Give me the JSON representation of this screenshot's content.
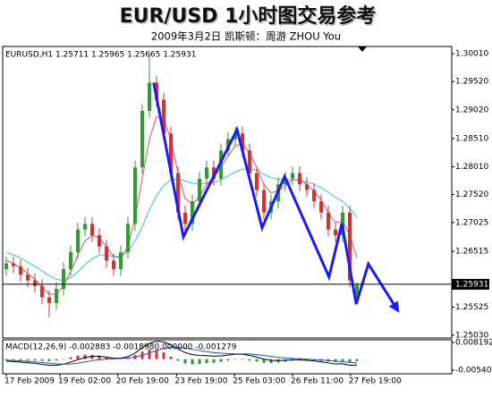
{
  "chart_data": [
    {
      "type": "candlestick",
      "title": "EUR/USD 1小时图交易参考",
      "subtitle": "2009年3月2日   凯斯顿：周游 ZHOU You",
      "info": "EURUSD,H1  1.25711 1.25965 1.25665 1.25931",
      "x": [
        0,
        1,
        2,
        3,
        4,
        5,
        6,
        7,
        8,
        9,
        10,
        11,
        12,
        13,
        14,
        15,
        16,
        17,
        18,
        19,
        20,
        21,
        22,
        23,
        24,
        25,
        26,
        27,
        28,
        29,
        30,
        31,
        32,
        33,
        34,
        35,
        36,
        37,
        38,
        39,
        40,
        41,
        42,
        43,
        44,
        45,
        46,
        47,
        48,
        49
      ],
      "open": [
        1.262,
        1.263,
        1.2625,
        1.261,
        1.26,
        1.259,
        1.257,
        1.256,
        1.2585,
        1.262,
        1.265,
        1.269,
        1.27,
        1.268,
        1.266,
        1.2635,
        1.262,
        1.265,
        1.27,
        1.28,
        1.29,
        1.295,
        1.292,
        1.286,
        1.279,
        1.272,
        1.27,
        1.274,
        1.278,
        1.28,
        1.278,
        1.283,
        1.285,
        1.286,
        1.283,
        1.279,
        1.276,
        1.272,
        1.274,
        1.277,
        1.278,
        1.279,
        1.277,
        1.276,
        1.274,
        1.272,
        1.269,
        1.268,
        1.272,
        1.25711
      ],
      "high": [
        1.2642,
        1.2642,
        1.2637,
        1.2622,
        1.2612,
        1.2602,
        1.2582,
        1.2597,
        1.2632,
        1.2662,
        1.2702,
        1.2712,
        1.2712,
        1.2692,
        1.2672,
        1.2647,
        1.2662,
        1.2712,
        1.2812,
        1.2912,
        1.3001,
        1.2962,
        1.2932,
        1.2872,
        1.2802,
        1.2732,
        1.2752,
        1.2792,
        1.2812,
        1.2812,
        1.2842,
        1.2862,
        1.2872,
        1.2872,
        1.2842,
        1.2802,
        1.2772,
        1.2752,
        1.2782,
        1.2792,
        1.2802,
        1.2802,
        1.2782,
        1.2772,
        1.2752,
        1.2732,
        1.2702,
        1.2732,
        1.2732,
        1.25965
      ],
      "low": [
        1.2608,
        1.2613,
        1.2598,
        1.2588,
        1.2578,
        1.2558,
        1.2535,
        1.2548,
        1.2573,
        1.2608,
        1.2638,
        1.2678,
        1.2668,
        1.2648,
        1.2623,
        1.2608,
        1.2608,
        1.2638,
        1.2688,
        1.2788,
        1.2888,
        1.2908,
        1.2848,
        1.2778,
        1.2708,
        1.2688,
        1.2688,
        1.2728,
        1.2768,
        1.2768,
        1.2768,
        1.2818,
        1.2838,
        1.2818,
        1.2778,
        1.2748,
        1.2708,
        1.2708,
        1.2728,
        1.2758,
        1.2768,
        1.2758,
        1.2748,
        1.2728,
        1.2708,
        1.2678,
        1.2668,
        1.2668,
        1.2588,
        1.25665
      ],
      "close": [
        1.263,
        1.2625,
        1.261,
        1.26,
        1.259,
        1.257,
        1.256,
        1.2585,
        1.262,
        1.265,
        1.269,
        1.27,
        1.268,
        1.266,
        1.2635,
        1.262,
        1.265,
        1.27,
        1.28,
        1.29,
        1.295,
        1.292,
        1.286,
        1.279,
        1.272,
        1.27,
        1.274,
        1.278,
        1.28,
        1.278,
        1.283,
        1.285,
        1.286,
        1.283,
        1.279,
        1.276,
        1.272,
        1.274,
        1.277,
        1.278,
        1.279,
        1.277,
        1.276,
        1.274,
        1.272,
        1.269,
        1.268,
        1.272,
        1.26,
        1.25931
      ],
      "up_color": "#2e9e2e",
      "down_color": "#d83030",
      "series": [
        {
          "color": "#3cc8c0",
          "values": [
            1.265,
            1.2645,
            1.264,
            1.2632,
            1.2625,
            1.2617,
            1.2608,
            1.2602,
            1.26,
            1.2605,
            1.2615,
            1.2628,
            1.2638,
            1.2645,
            1.2645,
            1.2642,
            1.2643,
            1.265,
            1.267,
            1.2695,
            1.2725,
            1.275,
            1.2768,
            1.2778,
            1.278,
            1.2776,
            1.2772,
            1.277,
            1.2772,
            1.2773,
            1.2778,
            1.2785,
            1.2792,
            1.2797,
            1.2798,
            1.2795,
            1.2788,
            1.2782,
            1.2779,
            1.2778,
            1.2778,
            1.2777,
            1.2774,
            1.277,
            1.2764,
            1.2756,
            1.2747,
            1.274,
            1.2728,
            1.2712
          ]
        },
        {
          "color": "#e8506a",
          "values": [
            1.2635,
            1.263,
            1.2622,
            1.2612,
            1.2602,
            1.2588,
            1.2576,
            1.2575,
            1.259,
            1.2615,
            1.2645,
            1.267,
            1.268,
            1.2675,
            1.266,
            1.2642,
            1.264,
            1.266,
            1.271,
            1.278,
            1.285,
            1.289,
            1.2885,
            1.285,
            1.279,
            1.2745,
            1.2735,
            1.2748,
            1.277,
            1.2782,
            1.28,
            1.282,
            1.2838,
            1.2842,
            1.2825,
            1.28,
            1.277,
            1.2755,
            1.2758,
            1.2768,
            1.2778,
            1.2778,
            1.277,
            1.2758,
            1.2742,
            1.272,
            1.2702,
            1.2705,
            1.268,
            1.264
          ]
        }
      ],
      "annotation_line": {
        "color": "#1a1aff",
        "x": [
          20.6,
          24.75,
          32.25,
          35.75,
          38.9,
          45.1,
          46.9,
          48.9,
          50.6,
          54.75
        ],
        "values": [
          1.295,
          1.2677,
          1.2867,
          1.2693,
          1.2784,
          1.2606,
          1.2701,
          1.2558,
          1.2629,
          1.2546
        ]
      },
      "price_line": 1.25931,
      "xlim": [
        -0.5,
        62.25
      ],
      "ylim": [
        1.2498,
        1.3014
      ],
      "yticks": [
        {
          "value": 1.3001,
          "label": "1.30010"
        },
        {
          "value": 1.2952,
          "label": "1.29520"
        },
        {
          "value": 1.2902,
          "label": "1.29020"
        },
        {
          "value": 1.2851,
          "label": "1.28510"
        },
        {
          "value": 1.2801,
          "label": "1.28010"
        },
        {
          "value": 1.2752,
          "label": "1.27520"
        },
        1.27025,
        1.26515,
        1.25525,
        {
          "value": 1.2503,
          "label": "1.25030"
        }
      ],
      "grid": false
    },
    {
      "type": "macd",
      "info": "MACD(12,26,9) -0.002883 -0.0018980.000000 -0.001279",
      "x": [
        0,
        1,
        2,
        3,
        4,
        5,
        6,
        7,
        8,
        9,
        10,
        11,
        12,
        13,
        14,
        15,
        16,
        17,
        18,
        19,
        20,
        21,
        22,
        23,
        24,
        25,
        26,
        27,
        28,
        29,
        30,
        31,
        32,
        33,
        34,
        35,
        36,
        37,
        38,
        39,
        40,
        41,
        42,
        43,
        44,
        45,
        46,
        47,
        48,
        49
      ],
      "histogram": [
        -0.0005,
        -0.0005,
        -0.0006,
        -0.0007,
        -0.0007,
        -0.0009,
        -0.001,
        -0.0007,
        0.0,
        0.0009,
        0.0017,
        0.0022,
        0.0021,
        0.0017,
        0.001,
        0.0003,
        0.0002,
        0.0007,
        0.002,
        0.0037,
        0.0048,
        0.0046,
        0.0033,
        0.0012,
        -0.0008,
        -0.0022,
        -0.0026,
        -0.0024,
        -0.002,
        -0.0018,
        -0.0013,
        -0.0007,
        -0.0002,
        -0.0002,
        -0.0007,
        -0.0012,
        -0.0018,
        -0.0019,
        -0.0016,
        -0.0012,
        -0.0008,
        -0.0006,
        -0.0006,
        -0.0007,
        -0.0009,
        -0.0012,
        -0.0014,
        -0.001,
        -0.0014,
        -0.001
      ],
      "up_color": "#e03030",
      "down_color": "#2a9a2a",
      "series": [
        {
          "color": "#000000",
          "values": [
            -0.001,
            -0.0012,
            -0.0015,
            -0.0018,
            -0.0021,
            -0.0026,
            -0.003,
            -0.003,
            -0.0025,
            -0.0015,
            -0.0003,
            0.0008,
            0.0013,
            0.0014,
            0.001,
            0.0005,
            0.0005,
            0.0012,
            0.003,
            0.0055,
            0.0078,
            0.0088,
            0.0085,
            0.007,
            0.005,
            0.0032,
            0.0022,
            0.0018,
            0.0017,
            0.0014,
            0.0016,
            0.002,
            0.0024,
            0.0024,
            0.0018,
            0.001,
            0.0,
            -0.0006,
            -0.0007,
            -0.0006,
            -0.0004,
            -0.0004,
            -0.0006,
            -0.0009,
            -0.0013,
            -0.0019,
            -0.0024,
            -0.0023,
            -0.003,
            -0.0029
          ]
        },
        {
          "color": "#1a4fd8",
          "values": [
            -0.0005,
            -0.0007,
            -0.0009,
            -0.0011,
            -0.0014,
            -0.0017,
            -0.002,
            -0.0023,
            -0.0025,
            -0.0024,
            -0.002,
            -0.0014,
            -0.0008,
            -0.0003,
            0.0,
            0.0002,
            0.0003,
            0.0005,
            0.001,
            0.0018,
            0.003,
            0.0042,
            0.0052,
            0.0058,
            0.0058,
            0.0054,
            0.0048,
            0.0042,
            0.0037,
            0.0032,
            0.0029,
            0.0027,
            0.0026,
            0.0026,
            0.0025,
            0.0022,
            0.0018,
            0.0013,
            0.0009,
            0.0006,
            0.0004,
            0.0002,
            0.0,
            -0.0002,
            -0.0004,
            -0.0007,
            -0.001,
            -0.0013,
            -0.0016,
            -0.0019
          ]
        }
      ],
      "xlim": [
        -0.5,
        62.25
      ],
      "ylim": [
        -0.0072,
        0.0095
      ],
      "yticks": [
        0.008192,
        {
          "value": -0.0054,
          "label": "-0.00540"
        }
      ],
      "xticks": [
        {
          "value": 0,
          "label": "17 Feb 2009"
        },
        {
          "value": 7.5,
          "label": "19 Feb 02:00"
        },
        {
          "value": 15.6,
          "label": "20 Feb 19:00"
        },
        {
          "value": 23.8,
          "label": "23 Feb 19:00"
        },
        {
          "value": 31.9,
          "label": "25 Feb 03:00"
        },
        {
          "value": 40,
          "label": "26 Feb 11:00"
        },
        {
          "value": 48.1,
          "label": "27 Feb 19:00"
        }
      ]
    }
  ]
}
